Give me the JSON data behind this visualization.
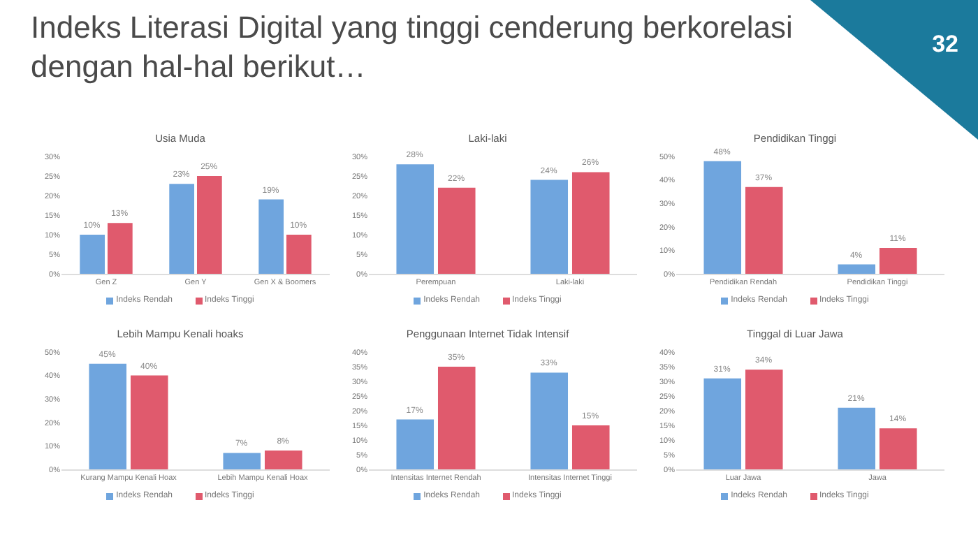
{
  "chart_data": [
    {
      "type": "bar",
      "title": "Usia Muda",
      "annotations": [
        "Indeks Literasi Digital yang tinggi cenderung berkorelasi dengan hal-hal berikut…",
        "32"
      ],
      "categories": [
        "Gen Z",
        "Gen Y",
        "Gen X & Boomers"
      ],
      "series": [
        {
          "name": "Indeks Rendah",
          "color": "#6fa5de",
          "values": [
            10,
            23,
            19
          ],
          "value_labels": [
            "10%",
            "23%",
            "19%"
          ]
        },
        {
          "name": "Indeks Tinggi",
          "color": "#e05a6d",
          "values": [
            13,
            25,
            10
          ],
          "value_labels": [
            "13%",
            "25%",
            "10%"
          ]
        }
      ],
      "ylim": [
        0,
        30
      ],
      "yticks": [
        {
          "value": 0,
          "label": "0%"
        },
        {
          "value": 5,
          "label": "5%"
        },
        {
          "value": 10,
          "label": "10%"
        },
        {
          "value": 15,
          "label": "15%"
        },
        {
          "value": 20,
          "label": "20%"
        },
        {
          "value": 25,
          "label": "25%"
        },
        {
          "value": 30,
          "label": "30%"
        }
      ],
      "legend": "bottom",
      "grid": false
    },
    {
      "type": "bar",
      "title": "Laki-laki",
      "categories": [
        "Perempuan",
        "Laki-laki"
      ],
      "series": [
        {
          "name": "Indeks Rendah",
          "color": "#6fa5de",
          "values": [
            28,
            24
          ],
          "value_labels": [
            "28%",
            "24%"
          ]
        },
        {
          "name": "Indeks Tinggi",
          "color": "#e05a6d",
          "values": [
            22,
            26
          ],
          "value_labels": [
            "22%",
            "26%"
          ]
        }
      ],
      "ylim": [
        0,
        30
      ],
      "yticks": [
        {
          "value": 0,
          "label": "0%"
        },
        {
          "value": 5,
          "label": "5%"
        },
        {
          "value": 10,
          "label": "10%"
        },
        {
          "value": 15,
          "label": "15%"
        },
        {
          "value": 20,
          "label": "20%"
        },
        {
          "value": 25,
          "label": "25%"
        },
        {
          "value": 30,
          "label": "30%"
        }
      ],
      "legend": "bottom",
      "grid": false
    },
    {
      "type": "bar",
      "title": "Pendidikan Tinggi",
      "categories": [
        "Pendidikan Rendah",
        "Pendidikan Tinggi"
      ],
      "series": [
        {
          "name": "Indeks Rendah",
          "color": "#6fa5de",
          "values": [
            48,
            4
          ],
          "value_labels": [
            "48%",
            "4%"
          ]
        },
        {
          "name": "Indeks Tinggi",
          "color": "#e05a6d",
          "values": [
            37,
            11
          ],
          "value_labels": [
            "37%",
            "11%"
          ]
        }
      ],
      "ylim": [
        0,
        50
      ],
      "yticks": [
        {
          "value": 0,
          "label": "0%"
        },
        {
          "value": 10,
          "label": "10%"
        },
        {
          "value": 20,
          "label": "20%"
        },
        {
          "value": 30,
          "label": "30%"
        },
        {
          "value": 40,
          "label": "40%"
        },
        {
          "value": 50,
          "label": "50%"
        }
      ],
      "legend": "bottom",
      "grid": false
    },
    {
      "type": "bar",
      "title": "Lebih Mampu Kenali hoaks",
      "categories": [
        "Kurang Mampu Kenali Hoax",
        "Lebih Mampu Kenali Hoax"
      ],
      "series": [
        {
          "name": "Indeks Rendah",
          "color": "#6fa5de",
          "values": [
            45,
            7
          ],
          "value_labels": [
            "45%",
            "7%"
          ]
        },
        {
          "name": "Indeks Tinggi",
          "color": "#e05a6d",
          "values": [
            40,
            8
          ],
          "value_labels": [
            "40%",
            "8%"
          ]
        }
      ],
      "ylim": [
        0,
        50
      ],
      "yticks": [
        {
          "value": 0,
          "label": "0%"
        },
        {
          "value": 10,
          "label": "10%"
        },
        {
          "value": 20,
          "label": "20%"
        },
        {
          "value": 30,
          "label": "30%"
        },
        {
          "value": 40,
          "label": "40%"
        },
        {
          "value": 50,
          "label": "50%"
        }
      ],
      "legend": "bottom",
      "grid": false
    },
    {
      "type": "bar",
      "title": "Penggunaan Internet Tidak Intensif",
      "categories": [
        "Intensitas Internet Rendah",
        "Intensitas Internet Tinggi"
      ],
      "series": [
        {
          "name": "Indeks Rendah",
          "color": "#6fa5de",
          "values": [
            17,
            33
          ],
          "value_labels": [
            "17%",
            "33%"
          ]
        },
        {
          "name": "Indeks Tinggi",
          "color": "#e05a6d",
          "values": [
            35,
            15
          ],
          "value_labels": [
            "35%",
            "15%"
          ]
        }
      ],
      "ylim": [
        0,
        40
      ],
      "yticks": [
        {
          "value": 0,
          "label": "0%"
        },
        {
          "value": 5,
          "label": "5%"
        },
        {
          "value": 10,
          "label": "10%"
        },
        {
          "value": 15,
          "label": "15%"
        },
        {
          "value": 20,
          "label": "20%"
        },
        {
          "value": 25,
          "label": "25%"
        },
        {
          "value": 30,
          "label": "30%"
        },
        {
          "value": 35,
          "label": "35%"
        },
        {
          "value": 40,
          "label": "40%"
        }
      ],
      "legend": "bottom",
      "grid": false
    },
    {
      "type": "bar",
      "title": "Tinggal di Luar Jawa",
      "categories": [
        "Luar Jawa",
        "Jawa"
      ],
      "series": [
        {
          "name": "Indeks Rendah",
          "color": "#6fa5de",
          "values": [
            31,
            21
          ],
          "value_labels": [
            "31%",
            "21%"
          ]
        },
        {
          "name": "Indeks Tinggi",
          "color": "#e05a6d",
          "values": [
            34,
            14
          ],
          "value_labels": [
            "34%",
            "14%"
          ]
        }
      ],
      "ylim": [
        0,
        40
      ],
      "yticks": [
        {
          "value": 0,
          "label": "0%"
        },
        {
          "value": 5,
          "label": "5%"
        },
        {
          "value": 10,
          "label": "10%"
        },
        {
          "value": 15,
          "label": "15%"
        },
        {
          "value": 20,
          "label": "20%"
        },
        {
          "value": 25,
          "label": "25%"
        },
        {
          "value": 30,
          "label": "30%"
        },
        {
          "value": 35,
          "label": "35%"
        },
        {
          "value": 40,
          "label": "40%"
        }
      ],
      "legend": "bottom",
      "grid": false
    }
  ]
}
